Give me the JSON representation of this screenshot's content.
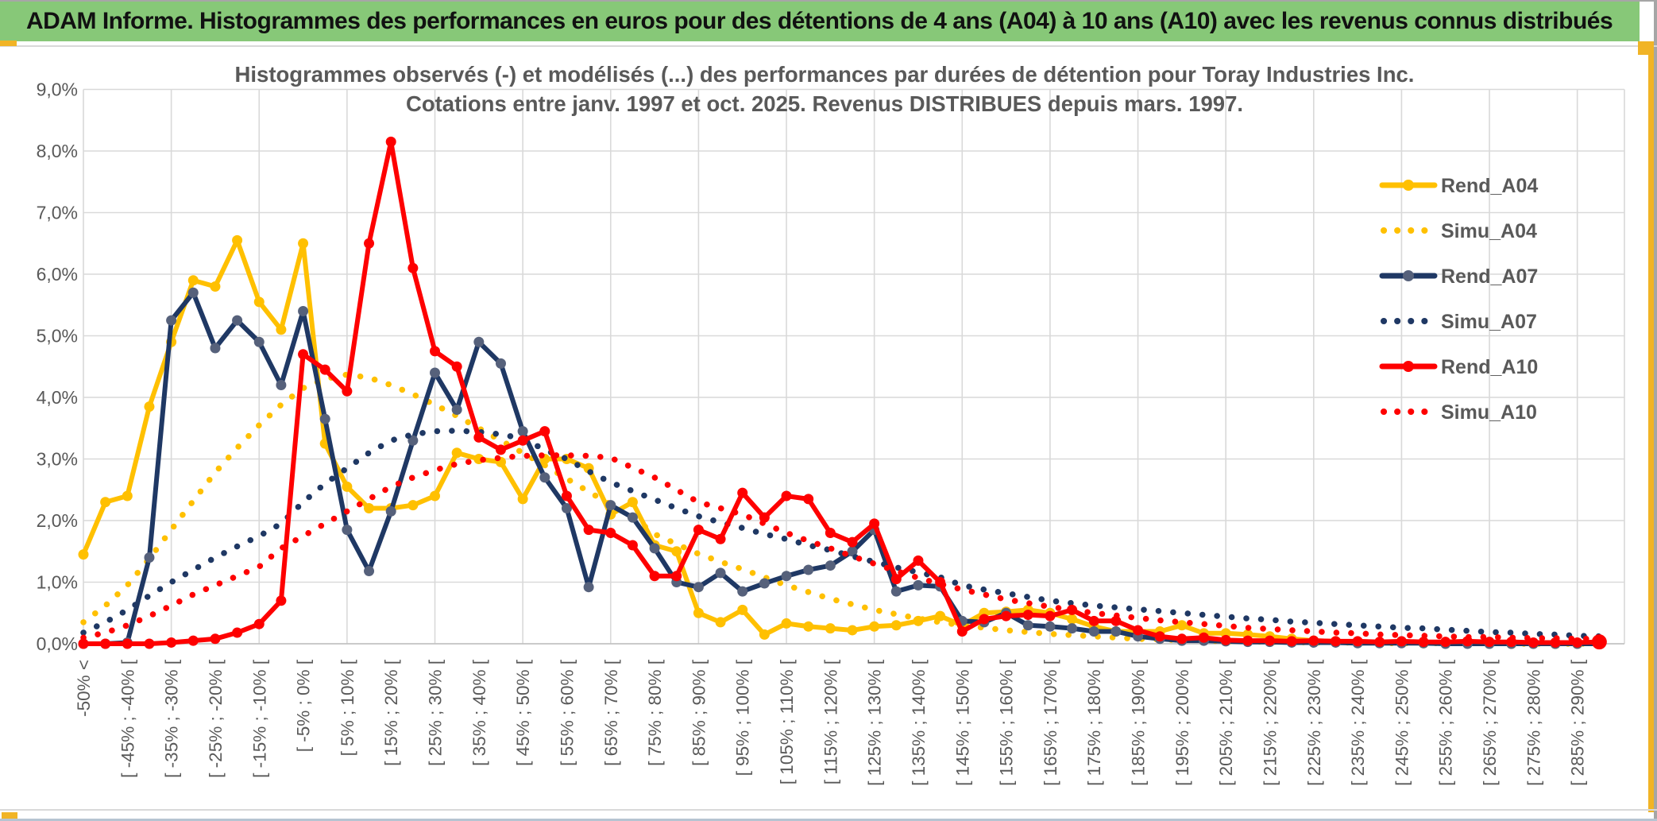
{
  "window": {
    "header_title": "ADAM Informe. Histogrammes des performances en euros pour des détentions de 4 ans (A04) à 10 ans (A10) avec les revenus connus distribués"
  },
  "colors": {
    "header_green": "#87C878",
    "accent_gold": "#F1B426",
    "bottom_edge_blue": "#B6C4D2",
    "grid_gray": "#D9D9D9",
    "axis_text_gray": "#595959",
    "series_yellow": "#FFC000",
    "series_navy": "#1F3864",
    "navy_marker_gray": "#56617B",
    "series_red": "#FE0000"
  },
  "chart_data": {
    "type": "line",
    "title_line1": "Histogrammes observés (-) et modélisés (...) des performances par durées de détention pour Toray Industries Inc.",
    "title_line2": "Cotations entre janv. 1997 et oct. 2025. Revenus DISTRIBUES depuis mars. 1997.",
    "grid": true,
    "legend_position": "right-inside",
    "y_axis": {
      "min": 0,
      "max": 9,
      "step_pct": 1,
      "tick_labels": [
        "0,0%",
        "1,0%",
        "2,0%",
        "3,0%",
        "4,0%",
        "5,0%",
        "6,0%",
        "7,0%",
        "8,0%",
        "9,0%"
      ]
    },
    "x_axis": {
      "n_points": 70,
      "bucket_step_pct": 5,
      "labels_every": 2,
      "labels": [
        "-50% <",
        "[ -45% ; -40% [",
        "[ -35% ; -30% [",
        "[ -25% ; -20% [",
        "[ -15% ; -10% [",
        "[ -5% ; 0% [",
        "[ 5% ; 10% [",
        "[ 15% ; 20% [",
        "[ 25% ; 30% [",
        "[ 35% ; 40% [",
        "[ 45% ; 50% [",
        "[ 55% ; 60% [",
        "[ 65% ; 70% [",
        "[ 75% ; 80% [",
        "[ 85% ; 90% [",
        "[ 95% ; 100% [",
        "[ 105% ; 110% [",
        "[ 115% ; 120% [",
        "[ 125% ; 130% [",
        "[ 135% ; 140% [",
        "[ 145% ; 150% [",
        "[ 155% ; 160% [",
        "[ 165% ; 170% [",
        "[ 175% ; 180% [",
        "[ 185% ; 190% [",
        "[ 195% ; 200% [",
        "[ 205% ; 210% [",
        "[ 215% ; 220% [",
        "[ 225% ; 230% [",
        "[ 235% ; 240% [",
        "[ 245% ; 250% [",
        "[ 255% ; 260% [",
        "[ 265% ; 270% [",
        "[ 275% ; 280% [",
        "[ 285% ; 290% ["
      ]
    },
    "legend": [
      "Rend_A04",
      "Simu_A04",
      "Rend_A07",
      "Simu_A07",
      "Rend_A10",
      "Simu_A10"
    ],
    "series": [
      {
        "name": "Rend_A04",
        "style": "solid",
        "color": "#FFC000",
        "marker_color": "#FFC000",
        "values": [
          1.45,
          2.3,
          2.4,
          3.85,
          4.9,
          5.9,
          5.8,
          6.55,
          5.55,
          5.1,
          6.5,
          3.25,
          2.55,
          2.2,
          2.2,
          2.25,
          2.4,
          3.1,
          3.0,
          2.95,
          2.35,
          3.0,
          3.0,
          2.85,
          2.1,
          2.3,
          1.6,
          1.5,
          0.5,
          0.35,
          0.55,
          0.15,
          0.33,
          0.28,
          0.25,
          0.22,
          0.28,
          0.3,
          0.37,
          0.45,
          0.3,
          0.5,
          0.52,
          0.55,
          0.5,
          0.4,
          0.28,
          0.2,
          0.2,
          0.2,
          0.3,
          0.17,
          0.17,
          0.15,
          0.12,
          0.08,
          0.05,
          0.04,
          0.03,
          0.02,
          0.02,
          0.01,
          0.01,
          0.01,
          0.01,
          0.0,
          0.0,
          0.0,
          0.0,
          0.0
        ]
      },
      {
        "name": "Simu_A04",
        "style": "dotted",
        "color": "#FFC000",
        "values": [
          0.35,
          0.62,
          0.95,
          1.38,
          1.85,
          2.32,
          2.78,
          3.18,
          3.55,
          3.88,
          4.15,
          4.3,
          4.37,
          4.32,
          4.2,
          4.05,
          3.88,
          3.7,
          3.5,
          3.3,
          3.1,
          2.9,
          2.68,
          2.47,
          2.26,
          2.06,
          1.78,
          1.62,
          1.46,
          1.33,
          1.21,
          1.08,
          0.95,
          0.84,
          0.73,
          0.64,
          0.55,
          0.48,
          0.41,
          0.35,
          0.3,
          0.26,
          0.22,
          0.19,
          0.16,
          0.14,
          0.12,
          0.1,
          0.08,
          0.07,
          0.06,
          0.05,
          0.04,
          0.04,
          0.03,
          0.03,
          0.02,
          0.02,
          0.02,
          0.01,
          0.01,
          0.01,
          0.01,
          0.01,
          0.01,
          0.0,
          0.0,
          0.0,
          0.0,
          0.0
        ]
      },
      {
        "name": "Rend_A07",
        "style": "solid",
        "color": "#1F3864",
        "marker_color": "#56617B",
        "values": [
          0.0,
          0.0,
          0.02,
          1.4,
          5.25,
          5.7,
          4.8,
          5.25,
          4.9,
          4.2,
          5.4,
          3.65,
          1.85,
          1.18,
          2.15,
          3.3,
          4.4,
          3.8,
          4.9,
          4.55,
          3.45,
          2.7,
          2.2,
          0.92,
          2.25,
          2.05,
          1.55,
          1.0,
          0.92,
          1.15,
          0.85,
          0.98,
          1.1,
          1.2,
          1.27,
          1.5,
          1.85,
          0.85,
          0.95,
          0.93,
          0.37,
          0.35,
          0.5,
          0.3,
          0.28,
          0.25,
          0.2,
          0.2,
          0.12,
          0.08,
          0.05,
          0.05,
          0.04,
          0.03,
          0.03,
          0.02,
          0.02,
          0.02,
          0.01,
          0.01,
          0.01,
          0.01,
          0.0,
          0.0,
          0.0,
          0.0,
          0.0,
          0.0,
          0.0,
          0.0
        ]
      },
      {
        "name": "Simu_A07",
        "style": "dotted",
        "color": "#1F3864",
        "values": [
          0.18,
          0.35,
          0.55,
          0.78,
          1.0,
          1.2,
          1.4,
          1.58,
          1.75,
          1.95,
          2.3,
          2.6,
          2.85,
          3.1,
          3.3,
          3.4,
          3.45,
          3.46,
          3.44,
          3.4,
          3.33,
          3.15,
          3.0,
          2.8,
          2.62,
          2.48,
          2.34,
          2.2,
          2.07,
          1.97,
          1.88,
          1.78,
          1.7,
          1.6,
          1.52,
          1.42,
          1.33,
          1.24,
          1.16,
          1.08,
          0.95,
          0.88,
          0.82,
          0.76,
          0.7,
          0.66,
          0.62,
          0.59,
          0.56,
          0.53,
          0.5,
          0.47,
          0.44,
          0.41,
          0.39,
          0.36,
          0.34,
          0.32,
          0.3,
          0.28,
          0.26,
          0.25,
          0.23,
          0.21,
          0.19,
          0.18,
          0.16,
          0.15,
          0.13,
          0.12
        ]
      },
      {
        "name": "Rend_A10",
        "style": "solid",
        "color": "#FE0000",
        "marker_color": "#FE0000",
        "big_end_marker": true,
        "values": [
          0.0,
          0.0,
          0.0,
          0.0,
          0.02,
          0.05,
          0.08,
          0.18,
          0.32,
          0.7,
          4.7,
          4.45,
          4.1,
          6.5,
          8.15,
          6.1,
          4.75,
          4.5,
          3.35,
          3.15,
          3.3,
          3.45,
          2.4,
          1.85,
          1.8,
          1.6,
          1.1,
          1.1,
          1.85,
          1.7,
          2.45,
          2.05,
          2.4,
          2.35,
          1.8,
          1.65,
          1.95,
          1.05,
          1.35,
          1.0,
          0.2,
          0.4,
          0.45,
          0.47,
          0.45,
          0.55,
          0.37,
          0.37,
          0.22,
          0.12,
          0.08,
          0.1,
          0.06,
          0.05,
          0.05,
          0.04,
          0.05,
          0.04,
          0.04,
          0.03,
          0.04,
          0.03,
          0.03,
          0.04,
          0.03,
          0.03,
          0.02,
          0.02,
          0.02,
          0.03
        ]
      },
      {
        "name": "Simu_A10",
        "style": "dotted",
        "color": "#FE0000",
        "values": [
          0.1,
          0.18,
          0.3,
          0.45,
          0.62,
          0.8,
          0.95,
          1.1,
          1.25,
          1.55,
          1.75,
          1.95,
          2.15,
          2.35,
          2.55,
          2.7,
          2.82,
          2.92,
          2.98,
          3.02,
          3.05,
          3.06,
          3.06,
          3.05,
          3.02,
          2.86,
          2.7,
          2.5,
          2.3,
          2.2,
          2.1,
          1.95,
          1.8,
          1.67,
          1.55,
          1.42,
          1.3,
          1.18,
          1.07,
          0.97,
          0.88,
          0.8,
          0.72,
          0.66,
          0.6,
          0.55,
          0.5,
          0.46,
          0.42,
          0.38,
          0.35,
          0.32,
          0.29,
          0.26,
          0.24,
          0.22,
          0.2,
          0.18,
          0.17,
          0.15,
          0.14,
          0.13,
          0.12,
          0.11,
          0.11,
          0.1,
          0.09,
          0.09,
          0.08,
          0.08
        ]
      }
    ]
  }
}
